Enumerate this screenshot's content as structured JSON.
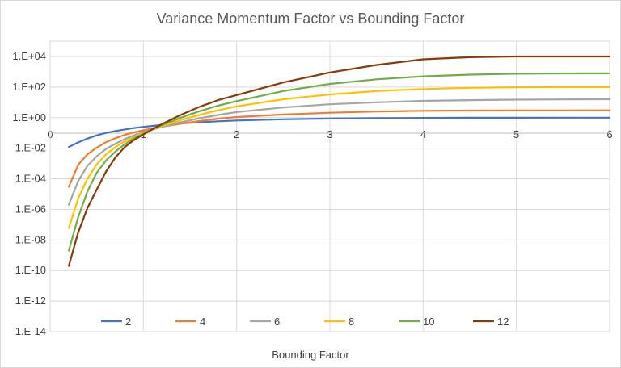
{
  "chart_data": {
    "type": "line",
    "title": "Variance Momentum Factor vs Bounding Factor",
    "xlabel": "Bounding Factor",
    "ylabel": "",
    "xlim": [
      0,
      6
    ],
    "ylim_log10": [
      -14,
      5
    ],
    "yscale": "log",
    "x_ticks": [
      "0",
      "1",
      "2",
      "3",
      "4",
      "5",
      "6"
    ],
    "y_ticks": [
      "1.E+04",
      "1.E+02",
      "1.E+00",
      "1.E-02",
      "1.E-04",
      "1.E-06",
      "1.E-08",
      "1.E-10",
      "1.E-12",
      "1.E-14"
    ],
    "grid": true,
    "legend_position": "bottom-inside",
    "x": [
      0.2,
      0.3,
      0.4,
      0.5,
      0.6,
      0.7,
      0.8,
      0.9,
      1.0,
      1.1,
      1.2,
      1.4,
      1.6,
      1.8,
      2.0,
      2.5,
      3.0,
      3.5,
      4.0,
      4.5,
      5.0,
      5.5,
      6.0
    ],
    "series": [
      {
        "name": "2",
        "color": "#4472C4",
        "values": [
          0.012,
          0.024,
          0.043,
          0.07,
          0.1,
          0.135,
          0.17,
          0.21,
          0.25,
          0.29,
          0.33,
          0.42,
          0.5,
          0.58,
          0.65,
          0.78,
          0.87,
          0.93,
          0.965,
          0.98,
          0.99,
          0.995,
          0.998
        ]
      },
      {
        "name": "4",
        "color": "#ED7D31",
        "values": [
          3e-05,
          0.0008,
          0.004,
          0.011,
          0.025,
          0.045,
          0.075,
          0.11,
          0.15,
          0.2,
          0.26,
          0.4,
          0.6,
          0.85,
          1.1,
          1.6,
          2.1,
          2.5,
          2.8,
          2.9,
          2.95,
          2.98,
          3.0
        ]
      },
      {
        "name": "6",
        "color": "#A5A5A5",
        "values": [
          2e-06,
          7e-05,
          0.0007,
          0.003,
          0.009,
          0.02,
          0.04,
          0.07,
          0.11,
          0.17,
          0.25,
          0.5,
          0.9,
          1.5,
          2.3,
          4.6,
          7.5,
          10,
          12.5,
          14,
          15,
          15.5,
          16
        ]
      },
      {
        "name": "8",
        "color": "#FFC000",
        "values": [
          6e-08,
          5e-06,
          0.0001,
          0.0009,
          0.004,
          0.012,
          0.028,
          0.055,
          0.1,
          0.18,
          0.28,
          0.7,
          1.5,
          3,
          5.5,
          16,
          33,
          55,
          75,
          90,
          97,
          100,
          100
        ]
      },
      {
        "name": "10",
        "color": "#70AD47",
        "values": [
          2e-09,
          3e-07,
          1.5e-05,
          0.00025,
          0.0016,
          0.006,
          0.018,
          0.045,
          0.09,
          0.18,
          0.33,
          1,
          2.6,
          6,
          12,
          55,
          160,
          320,
          500,
          650,
          740,
          780,
          790
        ]
      },
      {
        "name": "12",
        "color": "#843C0C",
        "values": [
          2e-10,
          3e-08,
          1.2e-06,
          2e-05,
          0.0003,
          0.0025,
          0.012,
          0.035,
          0.08,
          0.18,
          0.38,
          1.5,
          5,
          14,
          30,
          200,
          900,
          2800,
          6500,
          9000,
          10000,
          10000,
          10000
        ]
      }
    ]
  }
}
